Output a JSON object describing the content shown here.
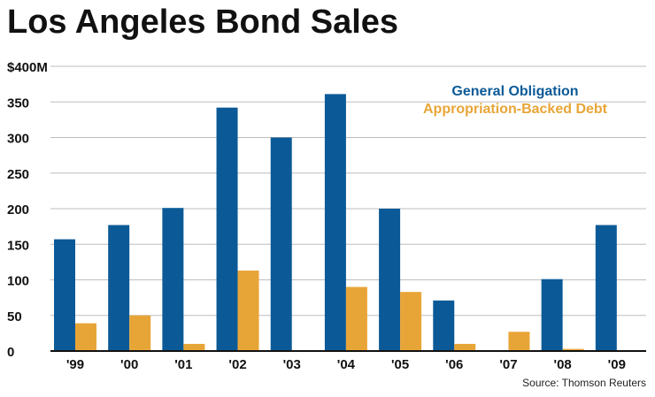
{
  "title": "Los Angeles Bond Sales",
  "source": "Source: Thomson Reuters",
  "colors": {
    "go": "#0b5a97",
    "abd": "#e8a537",
    "grid": "#bdbdbd",
    "axis": "#111111"
  },
  "chart_data": {
    "type": "bar",
    "title": "Los Angeles Bond Sales",
    "categories": [
      "'99",
      "'00",
      "'01",
      "'02",
      "'03",
      "'04",
      "'05",
      "'06",
      "'07",
      "'08",
      "'09"
    ],
    "series": [
      {
        "name": "General Obligation",
        "values": [
          157,
          177,
          201,
          342,
          300,
          361,
          200,
          71,
          0,
          101,
          177
        ]
      },
      {
        "name": "Appropriation-Backed Debt",
        "values": [
          39,
          50,
          10,
          113,
          0,
          90,
          83,
          10,
          27,
          3,
          0
        ]
      }
    ],
    "ylim": [
      0,
      400
    ],
    "yticks": [
      0,
      50,
      100,
      150,
      200,
      250,
      300,
      350,
      400
    ],
    "ytick_labels": [
      "0",
      "50",
      "100",
      "150",
      "200",
      "250",
      "300",
      "350",
      "$400M"
    ],
    "grid": true,
    "legend_position": "top-right",
    "xlabel": "",
    "ylabel": ""
  }
}
